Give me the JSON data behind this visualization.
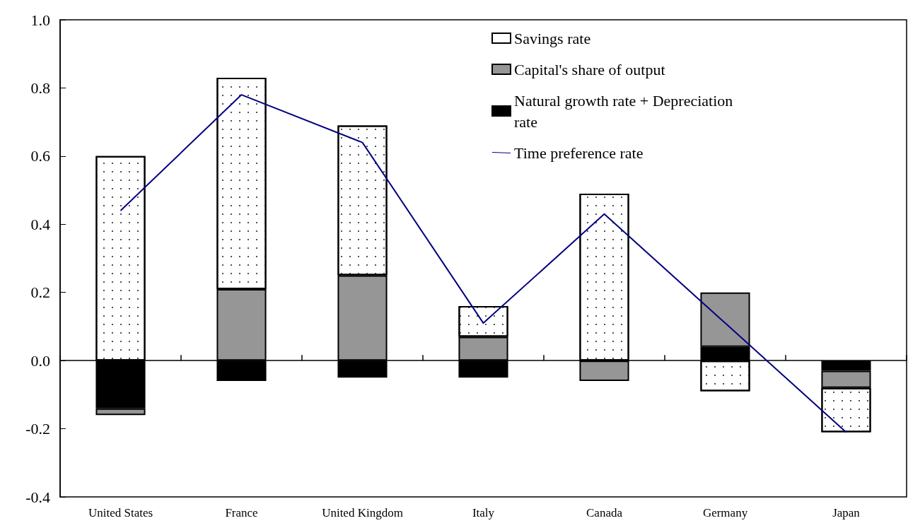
{
  "chart_data": {
    "type": "bar",
    "stacked": true,
    "legend": "top right",
    "marker": "none",
    "categories": [
      "United States",
      "France",
      "United Kingdom",
      "Italy",
      "Canada",
      "Germany",
      "Japan"
    ],
    "ylim": [
      -0.4,
      1.0
    ],
    "yticks": [
      -0.4,
      -0.2,
      {
        "value": 0,
        "label": "0.0"
      },
      0.2,
      0.4,
      0.6,
      0.8,
      {
        "value": 1,
        "label": "1.0"
      }
    ],
    "series": [
      {
        "name": "Natural growth rate + Depreciation rate",
        "color": "#000000",
        "values": [
          -0.14,
          -0.06,
          -0.05,
          -0.05,
          0,
          0.04,
          -0.03
        ]
      },
      {
        "name": "Capital's share of output",
        "color": "#969696",
        "values": [
          -0.02,
          0.21,
          0.25,
          0.07,
          -0.06,
          0.16,
          -0.05
        ]
      },
      {
        "name": "Savings rate",
        "color": "#ffffff",
        "values": [
          0.6,
          0.62,
          0.44,
          0.09,
          0.49,
          -0.09,
          -0.13
        ]
      },
      {
        "name": "Time preference rate",
        "type": "line",
        "color": "#000080",
        "values": [
          0.44,
          0.78,
          0.64,
          0.11,
          0.43,
          0.11,
          -0.21
        ]
      }
    ]
  }
}
